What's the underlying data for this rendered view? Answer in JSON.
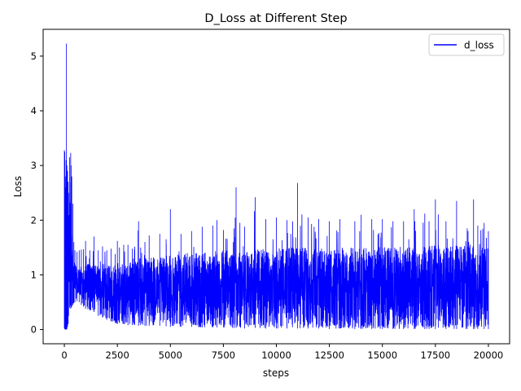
{
  "chart_data": {
    "type": "line",
    "title": "D_Loss at Different Step",
    "xlabel": "steps",
    "ylabel": "Loss",
    "xlim": [
      -1000,
      21000
    ],
    "ylim": [
      -0.26,
      5.49
    ],
    "xticks": [
      0,
      2500,
      5000,
      7500,
      10000,
      12500,
      15000,
      17500,
      20000
    ],
    "xtick_labels": [
      "0",
      "2500",
      "5000",
      "7500",
      "10000",
      "12500",
      "15000",
      "17500",
      "20000"
    ],
    "yticks": [
      0,
      1,
      2,
      3,
      4,
      5
    ],
    "ytick_labels": [
      "0",
      "1",
      "2",
      "3",
      "4",
      "5"
    ],
    "grid": false,
    "legend": {
      "position": "top-right",
      "entries": [
        "d_loss"
      ]
    },
    "series": [
      {
        "name": "d_loss",
        "color": "#0000ff",
        "x": [
          0,
          20,
          40,
          60,
          80,
          100,
          120,
          150,
          180,
          200,
          250,
          300,
          320,
          350,
          400,
          450,
          500,
          600,
          700,
          800,
          900,
          1000,
          1200,
          1400,
          1600,
          1800,
          2000,
          2200,
          2400,
          2500,
          2600,
          2800,
          3000,
          3200,
          3500,
          3600,
          3800,
          4000,
          4500,
          4800,
          5000,
          5500,
          6000,
          6500,
          7000,
          7200,
          7500,
          8000,
          8100,
          8500,
          9000,
          9500,
          10000,
          10500,
          11000,
          11500,
          12000,
          12500,
          13000,
          13700,
          14000,
          14500,
          15000,
          15500,
          16000,
          16500,
          17000,
          17200,
          17500,
          18000,
          18500,
          19000,
          19300,
          19500,
          19800,
          20000
        ],
        "max": [
          3.28,
          3.25,
          2.8,
          2.6,
          3.1,
          5.23,
          3.0,
          2.9,
          2.7,
          2.5,
          3.15,
          3.23,
          3.0,
          2.8,
          2.3,
          1.6,
          1.45,
          1.42,
          1.45,
          1.46,
          1.47,
          1.62,
          1.45,
          1.7,
          1.45,
          1.52,
          1.45,
          1.48,
          1.38,
          1.62,
          1.5,
          1.55,
          1.55,
          1.48,
          1.98,
          1.5,
          1.6,
          1.72,
          1.75,
          1.65,
          2.2,
          1.75,
          1.8,
          1.88,
          1.9,
          2.0,
          1.82,
          1.85,
          2.6,
          1.88,
          2.42,
          2.02,
          2.05,
          2.0,
          2.68,
          2.05,
          2.02,
          1.98,
          2.02,
          1.98,
          2.1,
          2.02,
          2.02,
          1.98,
          1.98,
          2.2,
          2.12,
          1.98,
          2.38,
          1.98,
          2.35,
          1.85,
          2.38,
          1.9,
          1.95,
          1.8
        ],
        "min": [
          0.02,
          0.01,
          0.0,
          0.0,
          0.0,
          0.0,
          0.01,
          0.05,
          0.1,
          0.25,
          0.4,
          0.38,
          0.4,
          0.42,
          0.45,
          0.48,
          0.5,
          0.52,
          0.5,
          0.45,
          0.42,
          0.38,
          0.35,
          0.32,
          0.25,
          0.22,
          0.18,
          0.15,
          0.12,
          0.1,
          0.12,
          0.1,
          0.08,
          0.08,
          0.07,
          0.08,
          0.07,
          0.07,
          0.07,
          0.06,
          0.05,
          0.05,
          0.05,
          0.04,
          0.04,
          0.04,
          0.04,
          0.03,
          0.03,
          0.02,
          0.03,
          0.02,
          0.02,
          0.02,
          0.02,
          0.02,
          0.02,
          0.01,
          0.02,
          0.01,
          0.01,
          0.01,
          0.01,
          0.01,
          0.01,
          0.01,
          0.01,
          0.01,
          0.01,
          0.01,
          0.01,
          0.01,
          0.01,
          0.01,
          0.01,
          0.01
        ],
        "typ_high": [
          2.4,
          2.2,
          2.0,
          1.9,
          2.2,
          3.4,
          2.3,
          2.1,
          2.0,
          1.9,
          2.6,
          2.5,
          2.2,
          1.9,
          1.5,
          1.25,
          1.2,
          1.15,
          1.15,
          1.15,
          1.15,
          1.2,
          1.2,
          1.2,
          1.2,
          1.2,
          1.2,
          1.2,
          1.2,
          1.22,
          1.22,
          1.22,
          1.25,
          1.25,
          1.3,
          1.3,
          1.3,
          1.32,
          1.35,
          1.35,
          1.38,
          1.4,
          1.4,
          1.42,
          1.42,
          1.45,
          1.45,
          1.45,
          1.5,
          1.45,
          1.48,
          1.48,
          1.48,
          1.5,
          1.52,
          1.5,
          1.5,
          1.5,
          1.5,
          1.5,
          1.5,
          1.5,
          1.52,
          1.5,
          1.52,
          1.52,
          1.52,
          1.52,
          1.55,
          1.52,
          1.55,
          1.52,
          1.55,
          1.52,
          1.52,
          1.52
        ],
        "typ_low": [
          0.3,
          0.1,
          0.05,
          0.05,
          0.05,
          0.05,
          0.15,
          0.3,
          0.5,
          0.6,
          0.75,
          0.7,
          0.72,
          0.72,
          0.7,
          0.68,
          0.65,
          0.62,
          0.6,
          0.58,
          0.55,
          0.52,
          0.5,
          0.48,
          0.42,
          0.38,
          0.34,
          0.3,
          0.27,
          0.25,
          0.24,
          0.22,
          0.2,
          0.19,
          0.18,
          0.18,
          0.17,
          0.16,
          0.15,
          0.14,
          0.13,
          0.12,
          0.11,
          0.1,
          0.1,
          0.09,
          0.09,
          0.08,
          0.08,
          0.07,
          0.07,
          0.07,
          0.06,
          0.06,
          0.06,
          0.06,
          0.05,
          0.05,
          0.05,
          0.05,
          0.05,
          0.05,
          0.05,
          0.05,
          0.05,
          0.05,
          0.05,
          0.05,
          0.05,
          0.05,
          0.05,
          0.05,
          0.05,
          0.05,
          0.05,
          0.05
        ]
      }
    ]
  }
}
